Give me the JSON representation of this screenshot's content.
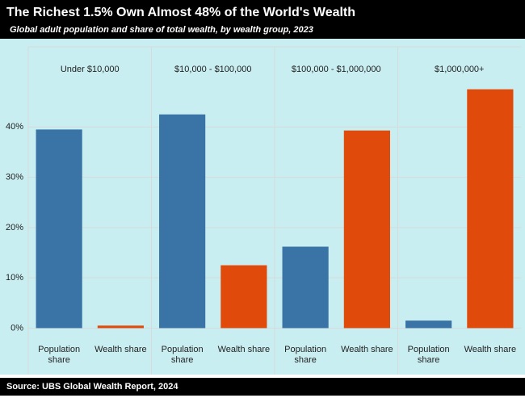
{
  "chart_data": {
    "type": "bar",
    "title": "The Richest 1.5% Own Almost 48% of the World's Wealth",
    "subtitle": "Global adult population and share of total wealth, by wealth group, 2023",
    "source": "Source: UBS Global Wealth Report, 2024",
    "facets": [
      "Under $10,000",
      "$10,000 - $100,000",
      "$100,000 - $1,000,000",
      "$1,000,000+"
    ],
    "series": [
      {
        "name": "Population share",
        "color": "#3a74a6",
        "values": [
          39.5,
          42.5,
          16.2,
          1.5
        ]
      },
      {
        "name": "Wealth share",
        "color": "#e04a0a",
        "values": [
          0.5,
          12.5,
          39.3,
          47.5
        ]
      }
    ],
    "ylim": [
      -2.5,
      50
    ],
    "yticks": [
      {
        "value": 0,
        "label": "0%"
      },
      {
        "value": 10,
        "label": "10%"
      },
      {
        "value": 20,
        "label": "20%"
      },
      {
        "value": 30,
        "label": "30%"
      },
      {
        "value": 40,
        "label": "40%"
      }
    ],
    "grid": true
  }
}
